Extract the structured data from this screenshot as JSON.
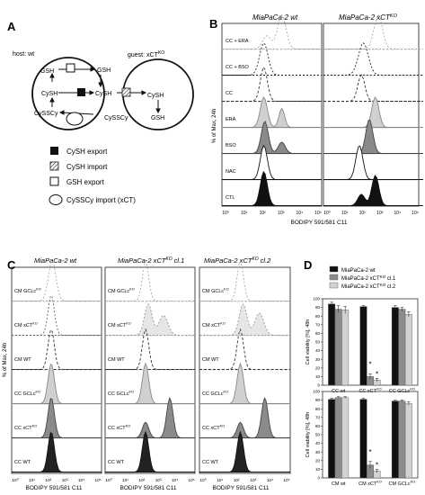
{
  "panelA": {
    "letter": "A",
    "host_label": "host: wt",
    "guest_label": "guest: xCT",
    "guest_sup": "KO",
    "molecules": {
      "gsh": "GSH",
      "cysh": "CySH",
      "cyssy": "CySSCy"
    },
    "legend": [
      {
        "label": "CySH export",
        "icon": "filled-square-icon"
      },
      {
        "label": "CySH import",
        "icon": "hatched-square-icon"
      },
      {
        "label": "GSH export",
        "icon": "open-square-icon"
      },
      {
        "label": "CySSCy import (xCT)",
        "icon": "ellipse-icon"
      }
    ]
  },
  "panelB": {
    "letter": "B",
    "col_titles": [
      "MiaPaCa-2 wt",
      "MiaPaCa-2 xCT"
    ],
    "col_sup": [
      "",
      "KO"
    ],
    "ylabel": "% of Max, 24h",
    "xlabel": "BODIPY 591/581 C11",
    "rows": [
      "CC + ERA",
      "CC + BSO",
      "CC",
      "ERA",
      "BSO",
      "NAC",
      "CTL"
    ],
    "ticks": [
      "10⁰",
      "10¹",
      "10²",
      "10³",
      "10⁴",
      "10⁵"
    ]
  },
  "panelC": {
    "letter": "C",
    "col_titles": [
      "MiaPaCa-2 wt",
      "MiaPaCa-2 xCT",
      "MiaPaCa-2 xCT"
    ],
    "col_sup": [
      "",
      "KO",
      "KO"
    ],
    "col_suffix": [
      "",
      " cl.1",
      " cl.2"
    ],
    "ylabel": "% of Max, 24h",
    "xlabel": "BODIPY 591/581 C11",
    "rows": [
      {
        "prefix": "CM GCLc",
        "sup": "KO"
      },
      {
        "prefix": "CM xCT",
        "sup": "KO"
      },
      {
        "prefix": "CM WT",
        "sup": ""
      },
      {
        "prefix": "CC GCLc",
        "sup": "KO"
      },
      {
        "prefix": "CC xCT",
        "sup": "KO"
      },
      {
        "prefix": "CC WT",
        "sup": ""
      }
    ],
    "ticks": [
      "10⁰",
      "10¹",
      "10²",
      "10³",
      "10⁴",
      "10⁵"
    ]
  },
  "panelD": {
    "letter": "D",
    "legend": [
      {
        "prefix": "MiaPaCa-2 wt",
        "sup": "",
        "suffix": "",
        "color": "#111111"
      },
      {
        "prefix": "MiaPaCa-2 xCT",
        "sup": "KO",
        "suffix": " cl.1",
        "color": "#8c8c8c"
      },
      {
        "prefix": "MiaPaCa-2 xCT",
        "sup": "KO",
        "suffix": " cl.2",
        "color": "#d2d2d2"
      }
    ]
  },
  "chart_data": [
    {
      "type": "bar",
      "title": "",
      "ylabel": "Cell viability [%], 48h",
      "ylim": [
        0,
        100
      ],
      "yticks": [
        0,
        10,
        20,
        30,
        40,
        50,
        60,
        70,
        80,
        90,
        100
      ],
      "grid": false,
      "legend_position": "top",
      "categories": [
        {
          "prefix": "CC wt",
          "sup": ""
        },
        {
          "prefix": "CC xCT",
          "sup": "KO"
        },
        {
          "prefix": "CC GCLc",
          "sup": "KO"
        }
      ],
      "series": [
        {
          "name": "MiaPaCa-2 wt",
          "color": "#111111",
          "values": [
            94,
            91,
            90
          ],
          "errors": [
            2,
            1,
            2
          ]
        },
        {
          "name": "MiaPaCa-2 xCT KO cl.1",
          "color": "#8c8c8c",
          "values": [
            88,
            10,
            88
          ],
          "errors": [
            4,
            3,
            2
          ]
        },
        {
          "name": "MiaPaCa-2 xCT KO cl.2",
          "color": "#d2d2d2",
          "values": [
            87,
            6,
            82
          ],
          "errors": [
            4,
            2,
            3
          ]
        }
      ],
      "annotations": [
        {
          "category": 1,
          "series": 1,
          "text": "*"
        },
        {
          "category": 1,
          "series": 2,
          "text": "*"
        }
      ]
    },
    {
      "type": "bar",
      "title": "",
      "ylabel": "Cell viability [%], 48h",
      "ylim": [
        0,
        100
      ],
      "yticks": [
        0,
        10,
        20,
        30,
        40,
        50,
        60,
        70,
        80,
        90,
        100
      ],
      "grid": false,
      "legend_position": "top",
      "categories": [
        {
          "prefix": "CM wt",
          "sup": ""
        },
        {
          "prefix": "CM xCT",
          "sup": "KO"
        },
        {
          "prefix": "CM GCLc",
          "sup": "KO"
        }
      ],
      "series": [
        {
          "name": "MiaPaCa-2 wt",
          "color": "#111111",
          "values": [
            91,
            91,
            89
          ],
          "errors": [
            1,
            1,
            1
          ]
        },
        {
          "name": "MiaPaCa-2 xCT KO cl.1",
          "color": "#8c8c8c",
          "values": [
            93,
            15,
            89
          ],
          "errors": [
            1,
            4,
            1
          ]
        },
        {
          "name": "MiaPaCa-2 xCT KO cl.2",
          "color": "#d2d2d2",
          "values": [
            93,
            8,
            86
          ],
          "errors": [
            1,
            2,
            2
          ]
        }
      ],
      "annotations": [
        {
          "category": 1,
          "series": 1,
          "text": "*"
        },
        {
          "category": 1,
          "series": 2,
          "text": "*"
        }
      ]
    }
  ]
}
